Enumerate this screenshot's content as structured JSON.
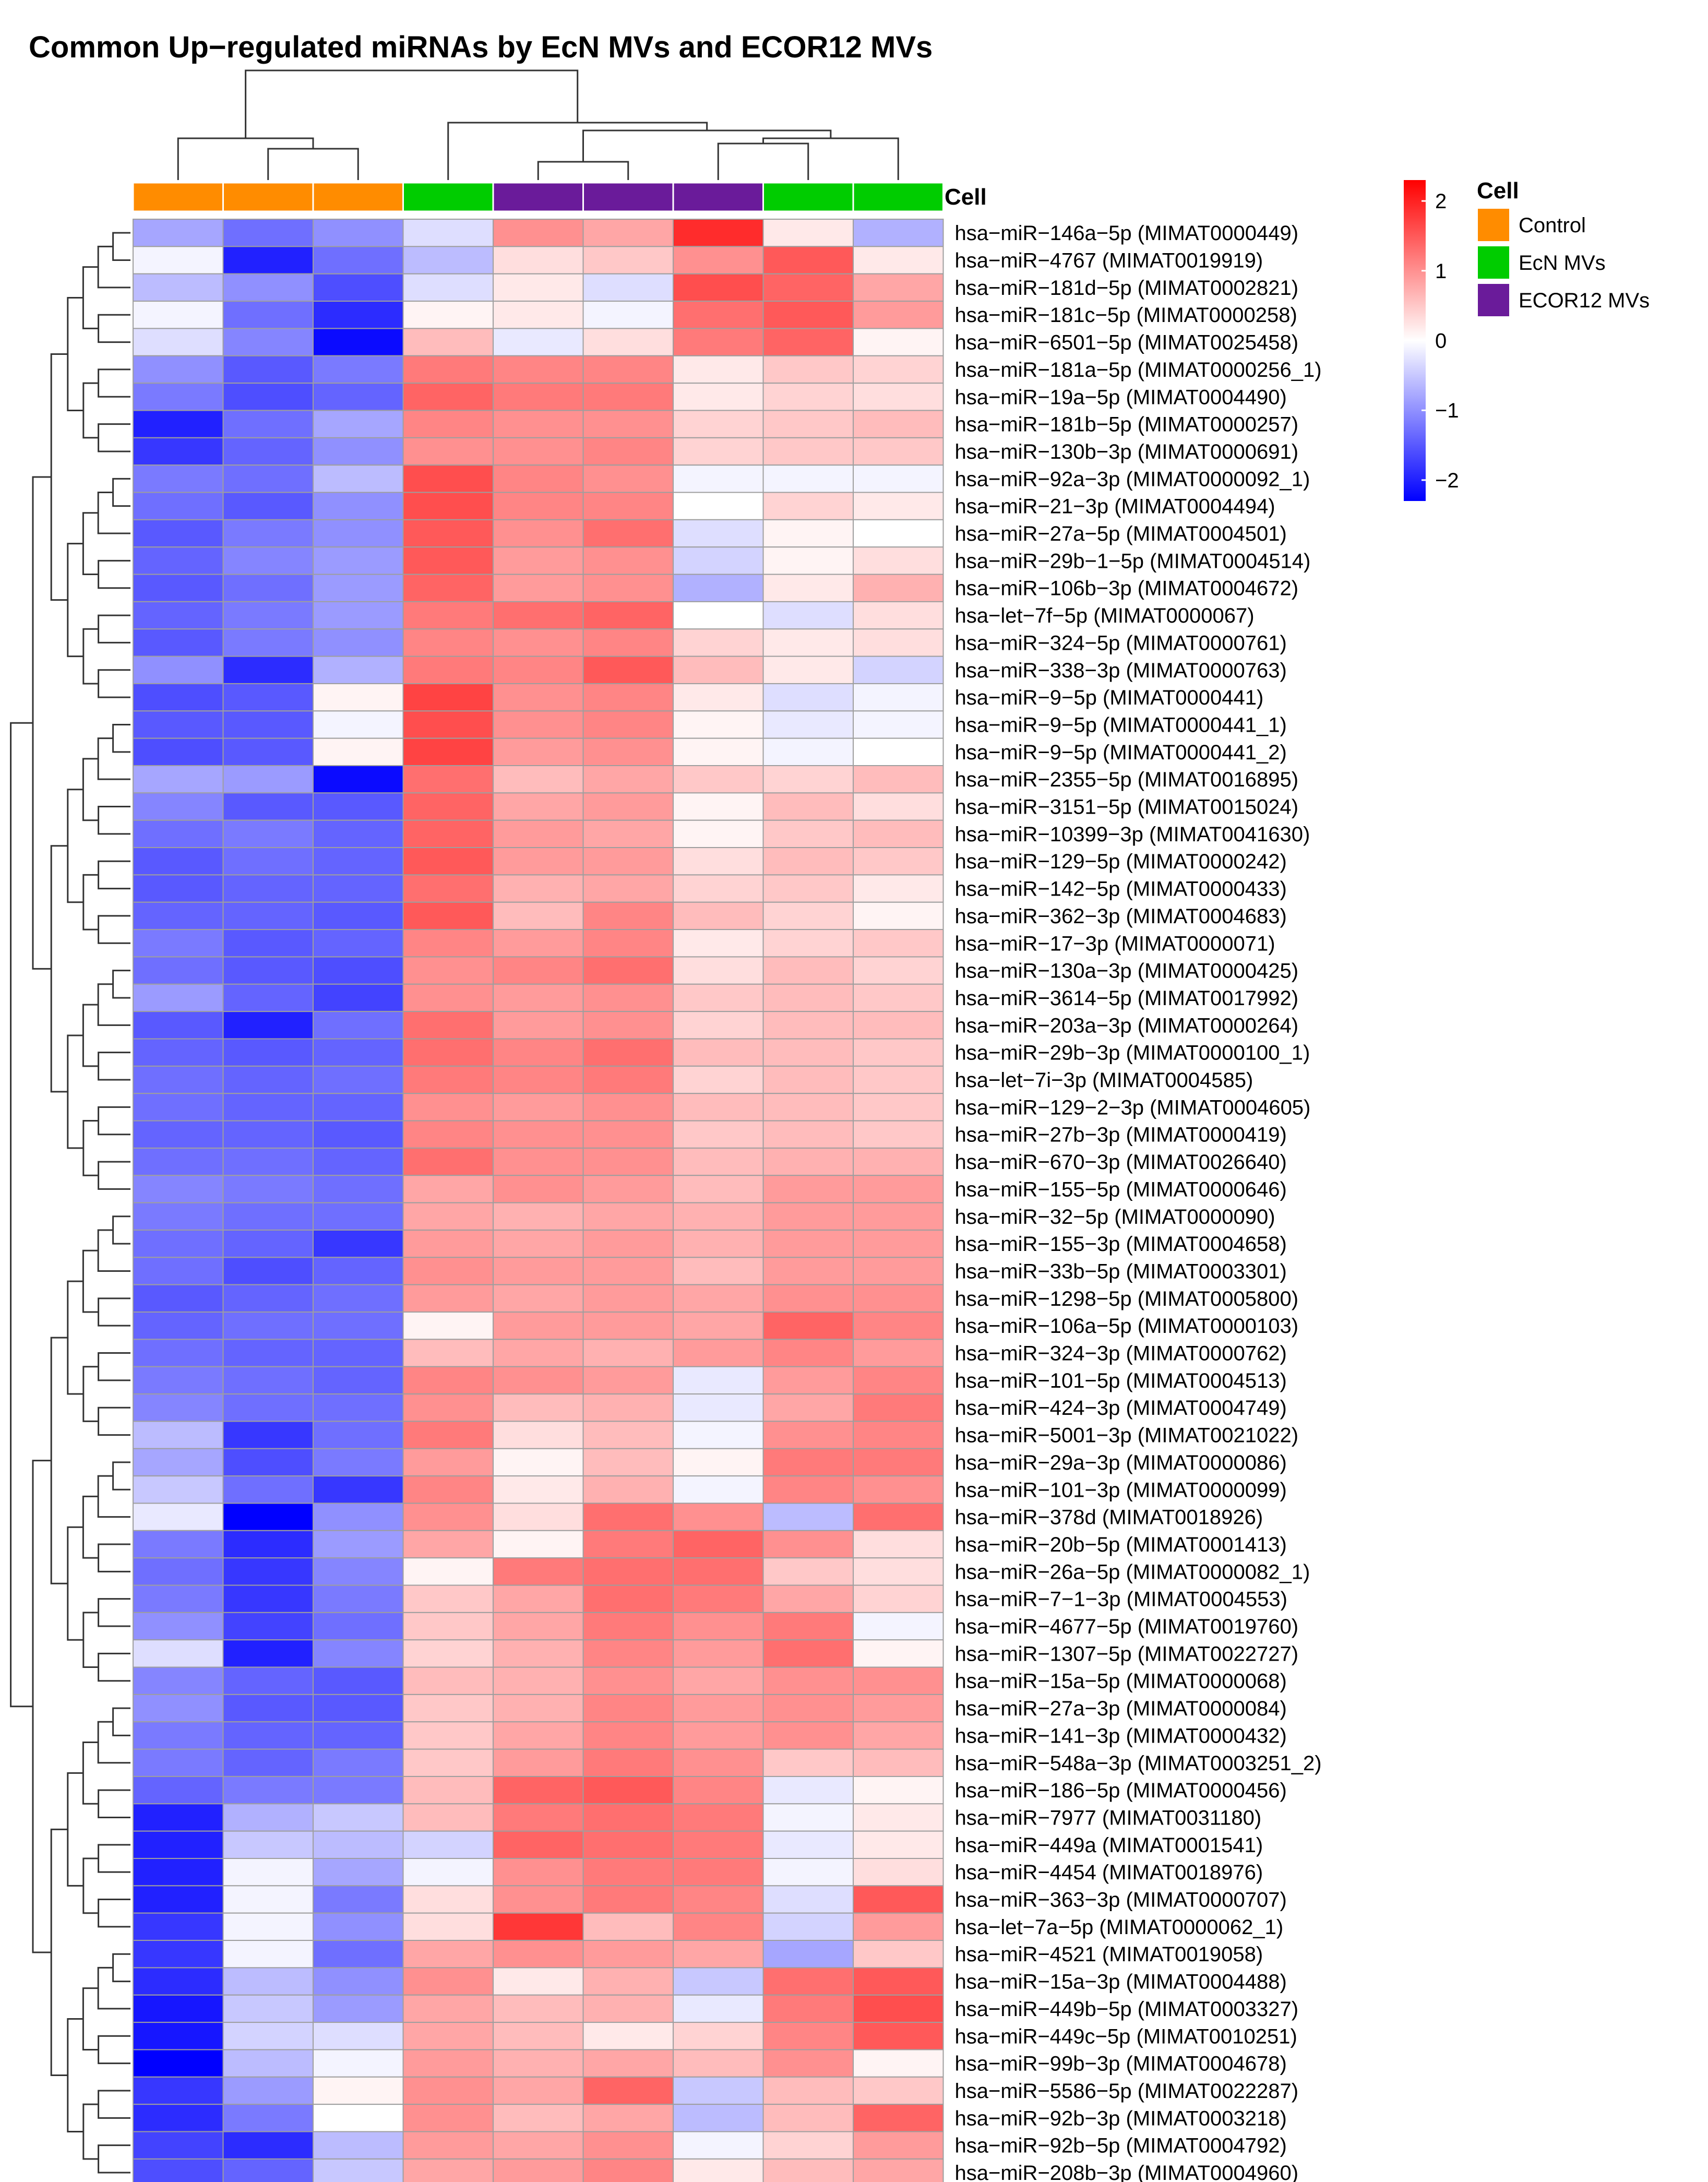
{
  "chart_data": {
    "type": "heatmap",
    "title": "Common Up−regulated miRNAs by EcN MVs and ECOR12 MVs",
    "annotation_label": "Cell",
    "column_groups": [
      "Control",
      "Control",
      "Control",
      "EcN MVs",
      "ECOR12 MVs",
      "ECOR12 MVs",
      "ECOR12 MVs",
      "EcN MVs",
      "EcN MVs"
    ],
    "legend": {
      "title": "Cell",
      "entries": [
        {
          "name": "Control",
          "color": "#ff8c00"
        },
        {
          "name": "EcN MVs",
          "color": "#00cc00"
        },
        {
          "name": "ECOR12 MVs",
          "color": "#6a1b9a"
        }
      ]
    },
    "colorbar": {
      "ticks": [
        "2",
        "1",
        "0",
        "−1",
        "−2"
      ],
      "tick_values": [
        2,
        1,
        0,
        -1,
        -2
      ],
      "range": [
        -2.3,
        2.3
      ],
      "low_color": "#0000ff",
      "mid_color": "#ffffff",
      "high_color": "#ff0000"
    },
    "rows": [
      "hsa−miR−146a−5p (MIMAT0000449)",
      "hsa−miR−4767 (MIMAT0019919)",
      "hsa−miR−181d−5p (MIMAT0002821)",
      "hsa−miR−181c−5p (MIMAT0000258)",
      "hsa−miR−6501−5p (MIMAT0025458)",
      "hsa−miR−181a−5p (MIMAT0000256_1)",
      "hsa−miR−19a−5p (MIMAT0004490)",
      "hsa−miR−181b−5p (MIMAT0000257)",
      "hsa−miR−130b−3p (MIMAT0000691)",
      "hsa−miR−92a−3p (MIMAT0000092_1)",
      "hsa−miR−21−3p (MIMAT0004494)",
      "hsa−miR−27a−5p (MIMAT0004501)",
      "hsa−miR−29b−1−5p (MIMAT0004514)",
      "hsa−miR−106b−3p (MIMAT0004672)",
      "hsa−let−7f−5p (MIMAT0000067)",
      "hsa−miR−324−5p (MIMAT0000761)",
      "hsa−miR−338−3p (MIMAT0000763)",
      "hsa−miR−9−5p (MIMAT0000441)",
      "hsa−miR−9−5p (MIMAT0000441_1)",
      "hsa−miR−9−5p (MIMAT0000441_2)",
      "hsa−miR−2355−5p (MIMAT0016895)",
      "hsa−miR−3151−5p (MIMAT0015024)",
      "hsa−miR−10399−3p (MIMAT0041630)",
      "hsa−miR−129−5p (MIMAT0000242)",
      "hsa−miR−142−5p (MIMAT0000433)",
      "hsa−miR−362−3p (MIMAT0004683)",
      "hsa−miR−17−3p (MIMAT0000071)",
      "hsa−miR−130a−3p (MIMAT0000425)",
      "hsa−miR−3614−5p (MIMAT0017992)",
      "hsa−miR−203a−3p (MIMAT0000264)",
      "hsa−miR−29b−3p (MIMAT0000100_1)",
      "hsa−let−7i−3p (MIMAT0004585)",
      "hsa−miR−129−2−3p (MIMAT0004605)",
      "hsa−miR−27b−3p (MIMAT0000419)",
      "hsa−miR−670−3p (MIMAT0026640)",
      "hsa−miR−155−5p (MIMAT0000646)",
      "hsa−miR−32−5p (MIMAT0000090)",
      "hsa−miR−155−3p (MIMAT0004658)",
      "hsa−miR−33b−5p (MIMAT0003301)",
      "hsa−miR−1298−5p (MIMAT0005800)",
      "hsa−miR−106a−5p (MIMAT0000103)",
      "hsa−miR−324−3p (MIMAT0000762)",
      "hsa−miR−101−5p (MIMAT0004513)",
      "hsa−miR−424−3p (MIMAT0004749)",
      "hsa−miR−5001−3p (MIMAT0021022)",
      "hsa−miR−29a−3p (MIMAT0000086)",
      "hsa−miR−101−3p (MIMAT0000099)",
      "hsa−miR−378d (MIMAT0018926)",
      "hsa−miR−20b−5p (MIMAT0001413)",
      "hsa−miR−26a−5p (MIMAT0000082_1)",
      "hsa−miR−7−1−3p (MIMAT0004553)",
      "hsa−miR−4677−5p (MIMAT0019760)",
      "hsa−miR−1307−5p (MIMAT0022727)",
      "hsa−miR−15a−5p (MIMAT0000068)",
      "hsa−miR−27a−3p (MIMAT0000084)",
      "hsa−miR−141−3p (MIMAT0000432)",
      "hsa−miR−548a−3p (MIMAT0003251_2)",
      "hsa−miR−186−5p (MIMAT0000456)",
      "hsa−miR−7977 (MIMAT0031180)",
      "hsa−miR−449a (MIMAT0001541)",
      "hsa−miR−4454 (MIMAT0018976)",
      "hsa−miR−363−3p (MIMAT0000707)",
      "hsa−let−7a−5p (MIMAT0000062_1)",
      "hsa−miR−4521 (MIMAT0019058)",
      "hsa−miR−15a−3p (MIMAT0004488)",
      "hsa−miR−449b−5p (MIMAT0003327)",
      "hsa−miR−449c−5p (MIMAT0010251)",
      "hsa−miR−99b−3p (MIMAT0004678)",
      "hsa−miR−5586−5p (MIMAT0022287)",
      "hsa−miR−92b−3p (MIMAT0003218)",
      "hsa−miR−92b−5p (MIMAT0004792)",
      "hsa−miR−208b−3p (MIMAT0004960)"
    ],
    "values": [
      [
        -0.8,
        -1.3,
        -1.0,
        -0.3,
        1.0,
        0.8,
        1.9,
        0.2,
        -0.7
      ],
      [
        -0.1,
        -2.0,
        -1.3,
        -0.6,
        0.3,
        0.5,
        1.0,
        1.5,
        0.2
      ],
      [
        -0.6,
        -1.0,
        -1.6,
        -0.3,
        0.2,
        -0.3,
        1.6,
        1.4,
        0.8
      ],
      [
        -0.1,
        -1.3,
        -1.9,
        0.1,
        0.2,
        -0.1,
        1.3,
        1.5,
        0.9
      ],
      [
        -0.3,
        -1.1,
        -2.2,
        0.6,
        -0.2,
        0.3,
        1.2,
        1.4,
        0.1
      ],
      [
        -1.0,
        -1.5,
        -1.2,
        1.2,
        1.1,
        1.1,
        0.2,
        0.5,
        0.4
      ],
      [
        -1.2,
        -1.6,
        -1.4,
        1.4,
        1.2,
        1.2,
        0.2,
        0.4,
        0.3
      ],
      [
        -2.0,
        -1.3,
        -0.8,
        1.1,
        1.0,
        1.0,
        0.4,
        0.5,
        0.6
      ],
      [
        -1.8,
        -1.4,
        -1.0,
        1.0,
        1.0,
        1.1,
        0.4,
        0.5,
        0.5
      ],
      [
        -1.2,
        -1.3,
        -0.6,
        1.6,
        1.1,
        1.0,
        -0.1,
        -0.1,
        -0.1
      ],
      [
        -1.3,
        -1.5,
        -1.0,
        1.6,
        1.1,
        1.1,
        0.0,
        0.4,
        0.2
      ],
      [
        -1.5,
        -1.2,
        -1.0,
        1.5,
        1.0,
        1.3,
        -0.3,
        0.1,
        0.0
      ],
      [
        -1.4,
        -1.1,
        -0.9,
        1.5,
        0.9,
        1.0,
        -0.4,
        0.1,
        0.3
      ],
      [
        -1.5,
        -1.3,
        -0.9,
        1.4,
        0.9,
        1.0,
        -0.7,
        0.2,
        0.7
      ],
      [
        -1.4,
        -1.2,
        -0.9,
        1.2,
        1.3,
        1.4,
        0.0,
        -0.3,
        0.3
      ],
      [
        -1.5,
        -1.2,
        -1.0,
        1.1,
        1.0,
        1.1,
        0.4,
        0.2,
        0.3
      ],
      [
        -1.0,
        -1.9,
        -0.7,
        1.2,
        1.1,
        1.5,
        0.6,
        0.2,
        -0.4
      ],
      [
        -1.6,
        -1.5,
        0.1,
        1.7,
        1.0,
        1.1,
        0.2,
        -0.3,
        -0.1
      ],
      [
        -1.5,
        -1.5,
        -0.1,
        1.6,
        1.0,
        1.1,
        0.1,
        -0.2,
        -0.1
      ],
      [
        -1.6,
        -1.5,
        0.1,
        1.7,
        0.9,
        1.0,
        0.1,
        -0.1,
        0.0
      ],
      [
        -0.8,
        -0.9,
        -2.2,
        1.3,
        0.6,
        0.8,
        0.5,
        0.4,
        0.6
      ],
      [
        -1.1,
        -1.5,
        -1.5,
        1.4,
        0.8,
        0.9,
        0.1,
        0.6,
        0.3
      ],
      [
        -1.3,
        -1.2,
        -1.4,
        1.4,
        0.9,
        0.8,
        0.1,
        0.5,
        0.6
      ],
      [
        -1.5,
        -1.3,
        -1.4,
        1.5,
        0.9,
        0.9,
        0.3,
        0.6,
        0.5
      ],
      [
        -1.5,
        -1.4,
        -1.4,
        1.3,
        0.7,
        0.8,
        0.4,
        0.5,
        0.2
      ],
      [
        -1.4,
        -1.4,
        -1.5,
        1.5,
        0.6,
        1.1,
        0.6,
        0.4,
        0.1
      ],
      [
        -1.2,
        -1.5,
        -1.4,
        1.1,
        0.9,
        1.1,
        0.2,
        0.4,
        0.5
      ],
      [
        -1.3,
        -1.5,
        -1.6,
        1.0,
        1.1,
        1.3,
        0.3,
        0.6,
        0.4
      ],
      [
        -0.9,
        -1.4,
        -1.7,
        1.0,
        0.9,
        1.0,
        0.5,
        0.6,
        0.5
      ],
      [
        -1.5,
        -2.0,
        -1.3,
        1.3,
        0.9,
        1.0,
        0.4,
        0.6,
        0.6
      ],
      [
        -1.4,
        -1.5,
        -1.4,
        1.3,
        1.1,
        1.3,
        0.6,
        0.6,
        0.5
      ],
      [
        -1.3,
        -1.4,
        -1.3,
        1.2,
        1.1,
        1.2,
        0.4,
        0.6,
        0.5
      ],
      [
        -1.3,
        -1.4,
        -1.4,
        1.0,
        0.9,
        1.0,
        0.6,
        0.6,
        0.5
      ],
      [
        -1.4,
        -1.4,
        -1.5,
        1.1,
        1.0,
        1.0,
        0.5,
        0.6,
        0.5
      ],
      [
        -1.3,
        -1.3,
        -1.4,
        1.3,
        1.0,
        1.0,
        0.6,
        0.7,
        0.7
      ],
      [
        -1.1,
        -1.2,
        -1.3,
        0.8,
        1.0,
        0.9,
        0.6,
        0.9,
        0.9
      ],
      [
        -1.2,
        -1.3,
        -1.3,
        0.8,
        0.7,
        0.8,
        0.7,
        0.9,
        0.9
      ],
      [
        -1.3,
        -1.4,
        -1.8,
        0.9,
        0.8,
        0.9,
        0.7,
        0.9,
        0.9
      ],
      [
        -1.3,
        -1.6,
        -1.4,
        1.0,
        0.9,
        0.9,
        0.6,
        0.9,
        0.9
      ],
      [
        -1.5,
        -1.4,
        -1.3,
        0.9,
        0.8,
        0.9,
        0.8,
        1.0,
        1.0
      ],
      [
        -1.4,
        -1.3,
        -1.3,
        0.1,
        0.9,
        0.9,
        0.8,
        1.4,
        1.1
      ],
      [
        -1.3,
        -1.4,
        -1.4,
        0.6,
        0.8,
        0.7,
        0.9,
        1.1,
        0.9
      ],
      [
        -1.2,
        -1.3,
        -1.4,
        1.1,
        1.0,
        0.9,
        -0.2,
        0.9,
        1.1
      ],
      [
        -1.1,
        -1.3,
        -1.3,
        1.0,
        0.6,
        0.7,
        -0.2,
        0.8,
        1.2
      ],
      [
        -0.6,
        -1.8,
        -1.3,
        1.2,
        0.3,
        0.6,
        -0.1,
        1.0,
        1.1
      ],
      [
        -0.8,
        -1.6,
        -1.2,
        0.9,
        0.1,
        0.6,
        0.1,
        1.2,
        1.2
      ],
      [
        -0.5,
        -1.3,
        -1.8,
        1.1,
        0.2,
        0.7,
        -0.1,
        1.1,
        1.0
      ],
      [
        -0.2,
        -2.3,
        -1.0,
        1.0,
        0.3,
        1.3,
        1.0,
        -0.6,
        1.3
      ],
      [
        -1.2,
        -1.9,
        -0.9,
        0.8,
        0.1,
        1.2,
        1.4,
        1.0,
        0.3
      ],
      [
        -1.3,
        -1.8,
        -1.1,
        0.1,
        1.2,
        1.3,
        1.3,
        0.5,
        0.3
      ],
      [
        -1.2,
        -1.8,
        -1.2,
        0.5,
        0.8,
        1.3,
        1.2,
        0.8,
        0.4
      ],
      [
        -1.0,
        -1.7,
        -1.3,
        0.5,
        0.8,
        1.2,
        1.0,
        1.2,
        -0.1
      ],
      [
        -0.3,
        -2.0,
        -1.1,
        0.4,
        0.7,
        1.1,
        0.9,
        1.3,
        0.1
      ],
      [
        -1.1,
        -1.4,
        -1.5,
        0.6,
        0.7,
        1.0,
        0.8,
        1.0,
        1.0
      ],
      [
        -1.0,
        -1.5,
        -1.5,
        0.5,
        0.7,
        1.1,
        0.9,
        1.0,
        0.9
      ],
      [
        -1.2,
        -1.4,
        -1.4,
        0.5,
        0.8,
        1.1,
        0.9,
        1.0,
        0.8
      ],
      [
        -1.2,
        -1.4,
        -1.2,
        0.5,
        0.9,
        1.2,
        1.0,
        0.5,
        0.6
      ],
      [
        -1.4,
        -1.2,
        -1.2,
        0.6,
        1.4,
        1.5,
        1.1,
        -0.2,
        0.1
      ],
      [
        -2.0,
        -0.7,
        -0.5,
        0.6,
        1.2,
        1.3,
        1.2,
        -0.1,
        0.2
      ],
      [
        -2.0,
        -0.5,
        -0.6,
        -0.4,
        1.4,
        1.3,
        1.2,
        -0.2,
        0.2
      ],
      [
        -2.0,
        -0.1,
        -0.8,
        -0.1,
        1.0,
        1.2,
        1.2,
        -0.1,
        0.3
      ],
      [
        -2.0,
        -0.1,
        -1.2,
        0.3,
        1.0,
        1.2,
        1.1,
        -0.3,
        1.5
      ],
      [
        -1.8,
        -0.1,
        -1.0,
        0.3,
        1.8,
        0.6,
        1.1,
        -0.4,
        0.9
      ],
      [
        -1.8,
        -0.1,
        -1.3,
        0.8,
        1.0,
        0.9,
        0.8,
        -0.8,
        0.5
      ],
      [
        -1.9,
        -0.6,
        -1.0,
        1.0,
        0.2,
        0.7,
        -0.5,
        1.3,
        1.5
      ],
      [
        -2.1,
        -0.5,
        -0.9,
        0.8,
        0.6,
        0.7,
        -0.2,
        1.2,
        1.6
      ],
      [
        -2.1,
        -0.4,
        -0.3,
        0.8,
        0.6,
        0.2,
        0.4,
        1.1,
        1.5
      ],
      [
        -2.3,
        -0.6,
        -0.1,
        0.9,
        0.7,
        0.8,
        0.6,
        1.0,
        0.1
      ],
      [
        -1.8,
        -0.9,
        0.1,
        1.0,
        0.8,
        1.4,
        -0.5,
        0.6,
        0.5
      ],
      [
        -1.9,
        -1.2,
        0.0,
        1.0,
        0.6,
        0.8,
        -0.6,
        0.6,
        1.4
      ],
      [
        -1.7,
        -1.9,
        -0.6,
        0.9,
        0.8,
        1.0,
        -0.1,
        0.4,
        0.9
      ],
      [
        -1.6,
        -1.4,
        -0.5,
        0.8,
        0.9,
        1.1,
        0.2,
        0.6,
        0.8
      ]
    ]
  }
}
